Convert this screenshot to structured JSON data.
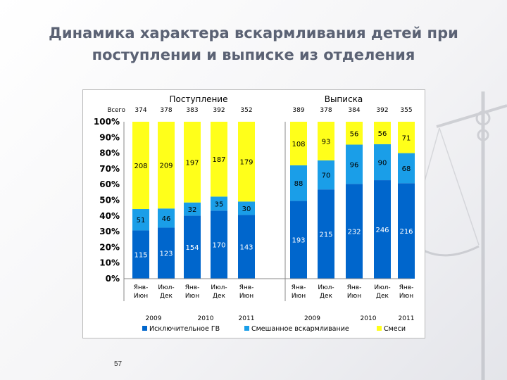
{
  "slide": {
    "title_line1": "Динамика характера вскармливания детей при",
    "title_line2": "поступлении и выписке из отделения",
    "page_number": "57"
  },
  "chart_data": {
    "type": "bar",
    "stacked": "percent",
    "panels": [
      {
        "title": "Поступление",
        "x_start": 1
      },
      {
        "title": "Выписка",
        "x_start": 6
      }
    ],
    "totals_label": "Всего",
    "totals": [
      "374",
      "378",
      "383",
      "392",
      "352",
      "389",
      "378",
      "384",
      "392",
      "355"
    ],
    "categories": [
      "Янв-Июн",
      "Июл-Дек",
      "Янв-Июн",
      "Июл-Дек",
      "Янв-Июн",
      "Янв-Июн",
      "Июл-Дек",
      "Янв-Июн",
      "Июл-Дек",
      "Янв-Июн"
    ],
    "category_lines": [
      [
        "Янв-",
        "Июн"
      ],
      [
        "Июл-",
        "Дек"
      ],
      [
        "Янв-",
        "Июн"
      ],
      [
        "Июл-",
        "Дек"
      ],
      [
        "Янв-",
        "Июн"
      ],
      [
        "Янв-",
        "Июн"
      ],
      [
        "Июл-",
        "Дек"
      ],
      [
        "Янв-",
        "Июн"
      ],
      [
        "Июл-",
        "Дек"
      ],
      [
        "Янв-",
        "Июн"
      ]
    ],
    "year_groups": [
      {
        "label": "2009",
        "from": 0,
        "to": 1
      },
      {
        "label": "2010",
        "from": 2,
        "to": 3
      },
      {
        "label": "2011",
        "from": 4,
        "to": 4
      },
      {
        "label": "2009",
        "from": 5,
        "to": 6
      },
      {
        "label": "2010",
        "from": 7,
        "to": 8
      },
      {
        "label": "2011",
        "from": 9,
        "to": 9
      }
    ],
    "series": [
      {
        "name": "Исключительное ГВ",
        "color": "#0066cc",
        "values": [
          115,
          123,
          154,
          170,
          143,
          193,
          215,
          232,
          246,
          216
        ]
      },
      {
        "name": "Смешанное вскармливание",
        "color": "#1a9ee8",
        "values": [
          51,
          46,
          32,
          35,
          30,
          88,
          70,
          96,
          90,
          68
        ]
      },
      {
        "name": "Смеси",
        "color": "#ffff1a",
        "values": [
          208,
          209,
          197,
          187,
          179,
          108,
          93,
          56,
          56,
          71
        ]
      }
    ],
    "ytick_labels": [
      "0%",
      "10%",
      "20%",
      "30%",
      "40%",
      "50%",
      "60%",
      "70%",
      "80%",
      "90%",
      "100%"
    ],
    "ylim": [
      0,
      100
    ],
    "grid": false,
    "legend_position": "bottom"
  }
}
